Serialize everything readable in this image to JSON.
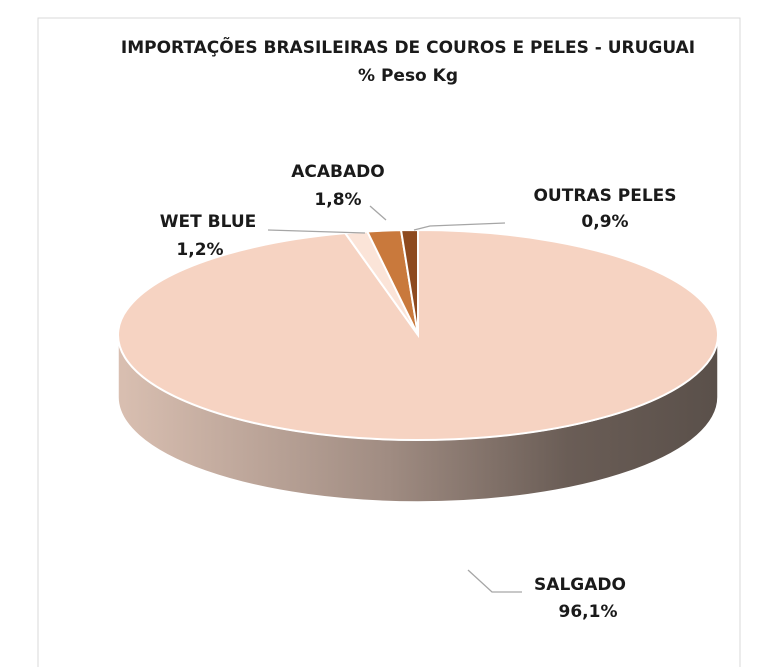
{
  "chart_data": {
    "type": "pie",
    "title": "IMPORTAÇÕES BRASILEIRAS DE COUROS E PELES - URUGUAI",
    "subtitle": "% Peso Kg",
    "categories": [
      "SALGADO",
      "WET BLUE",
      "ACABADO",
      "OUTRAS PELES"
    ],
    "values": [
      96.1,
      1.2,
      1.8,
      0.9
    ],
    "value_labels": [
      "96,1%",
      "1,2%",
      "1,8%",
      "0,9%"
    ],
    "colors": [
      "#f6d3c2",
      "#fbe4d8",
      "#c9793c",
      "#8e4a1f"
    ]
  }
}
